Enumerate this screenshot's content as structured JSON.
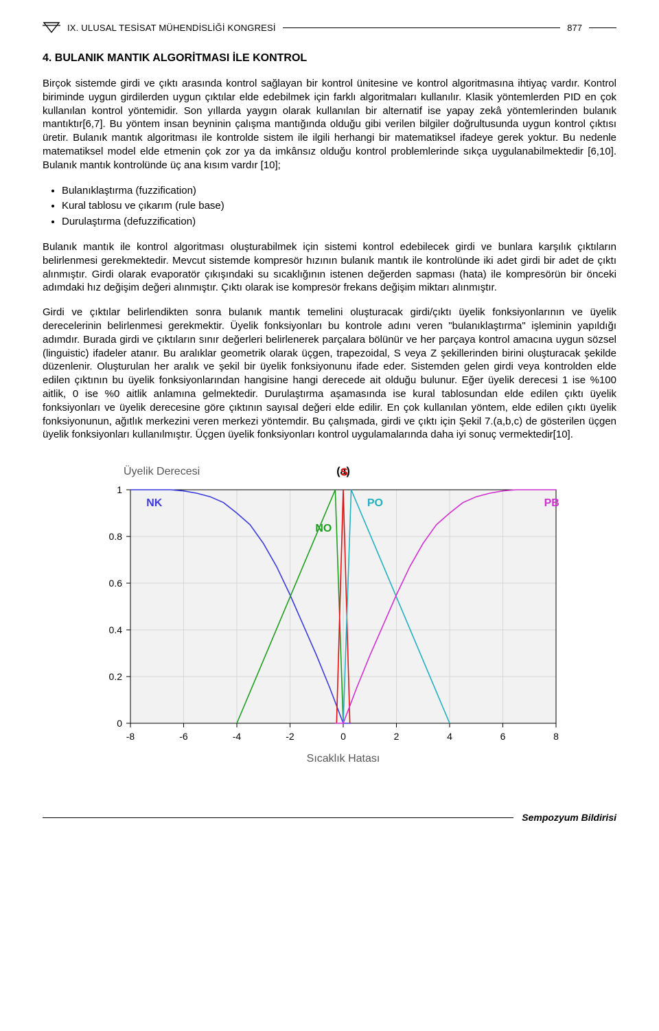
{
  "header": {
    "running_title": "IX. ULUSAL TESİSAT MÜHENDİSLİĞİ KONGRESİ",
    "page_number": "877"
  },
  "section": {
    "title": "4. BULANIK MANTIK ALGORİTMASI İLE KONTROL"
  },
  "paragraphs": {
    "p1": "Birçok sistemde girdi ve çıktı arasında kontrol sağlayan bir kontrol ünitesine ve kontrol algoritmasına ihtiyaç vardır. Kontrol biriminde uygun girdilerden uygun çıktılar elde edebilmek için farklı algoritmaları kullanılır. Klasik yöntemlerden PID en çok kullanılan kontrol yöntemidir. Son yıllarda yaygın olarak kullanılan bir alternatif ise yapay zekâ yöntemlerinden bulanık mantıktır[6,7]. Bu yöntem insan beyninin çalışma mantığında olduğu gibi verilen bilgiler doğrultusunda uygun kontrol çıktısı üretir. Bulanık mantık algoritması ile kontrolde sistem ile ilgili herhangi bir matematiksel ifadeye gerek yoktur. Bu nedenle matematiksel model elde etmenin çok zor ya da imkânsız olduğu kontrol problemlerinde sıkça uygulanabilmektedir [6,10]. Bulanık mantık kontrolünde üç ana kısım vardır [10];",
    "p2": "Bulanık mantık ile kontrol algoritması oluşturabilmek için sistemi kontrol edebilecek girdi ve bunlara karşılık çıktıların belirlenmesi gerekmektedir. Mevcut sistemde kompresör hızının bulanık mantık ile kontrolünde iki adet girdi bir adet de çıktı alınmıştır. Girdi olarak evaporatör çıkışındaki su sıcaklığının istenen değerden sapması (hata) ile kompresörün bir önceki adımdaki hız değişim değeri alınmıştır. Çıktı olarak ise kompresör frekans değişim miktarı alınmıştır.",
    "p3": "Girdi ve çıktılar belirlendikten sonra bulanık mantık temelini oluşturacak girdi/çıktı üyelik fonksiyonlarının ve üyelik derecelerinin belirlenmesi gerekmektir. Üyelik fonksiyonları bu kontrole adını veren \"bulanıklaştırma\" işleminin yapıldığı adımdır. Burada girdi ve çıktıların sınır değerleri belirlenerek parçalara bölünür ve her parçaya kontrol amacına uygun sözsel (linguistic) ifadeler atanır. Bu aralıklar geometrik olarak üçgen, trapezoidal, S veya Z şekillerinden birini oluşturacak şekilde düzenlenir. Oluşturulan her aralık ve şekil bir üyelik fonksiyonunu ifade eder. Sistemden gelen girdi veya kontrolden elde edilen çıktının bu üyelik fonksiyonlarından hangisine hangi derecede ait olduğu bulunur. Eğer üyelik derecesi 1 ise %100 aitlik, 0 ise %0 aitlik anlamına gelmektedir. Durulaştırma aşamasında ise kural tablosundan elde edilen çıktı üyelik fonksiyonları ve üyelik derecesine göre çıktının sayısal değeri elde edilir. En çok kullanılan yöntem, elde edilen çıktı üyelik fonksiyonunun, ağıtlık merkezini veren merkezi yöntemdir. Bu çalışmada, girdi ve çıktı için Şekil 7.(a,b,c) de gösterilen üçgen üyelik fonksiyonları kullanılmıştır. Üçgen üyelik fonksiyonları kontrol uygulamalarında daha iyi sonuç vermektedir[10]."
  },
  "bullets": {
    "b1": "Bulanıklaştırma (fuzzification)",
    "b2": "Kural tablosu ve çıkarım (rule base)",
    "b3": "Durulaştırma (defuzzification)"
  },
  "footer": {
    "text": "Sempozyum Bildirisi"
  },
  "chart": {
    "type": "membership-functions",
    "subplot_label": "(a)",
    "y_axis_title": "Üyelik Derecesi",
    "x_axis_title": "Sıcaklık Hatası",
    "xlim": [
      -8,
      8
    ],
    "ylim": [
      0,
      1
    ],
    "xticks": [
      -8,
      -6,
      -4,
      -2,
      0,
      2,
      4,
      6,
      8
    ],
    "yticks": [
      0,
      0.2,
      0.4,
      0.6,
      0.8,
      1
    ],
    "plot_bg": "#f2f2f2",
    "page_bg": "#ffffff",
    "grid_color": "#cccccc",
    "axis_color": "#000000",
    "tick_font_size": 14,
    "title_font_size": 16,
    "title_color": "#555555",
    "subplot_label_color": "#000000",
    "line_width": 1.6,
    "curves": {
      "NK": {
        "label": "NK",
        "color": "#3a3adf",
        "label_xy": [
          -7.4,
          0.93
        ],
        "type": "z-shape",
        "points": [
          [
            -8,
            1
          ],
          [
            -7,
            1
          ],
          [
            -6.5,
            1
          ],
          [
            -6,
            0.995
          ],
          [
            -5.5,
            0.985
          ],
          [
            -5,
            0.97
          ],
          [
            -4.5,
            0.945
          ],
          [
            -4,
            0.9
          ],
          [
            -3.5,
            0.85
          ],
          [
            -3,
            0.77
          ],
          [
            -2.5,
            0.67
          ],
          [
            -2,
            0.55
          ],
          [
            -1.5,
            0.42
          ],
          [
            -1,
            0.29
          ],
          [
            -0.5,
            0.15
          ],
          [
            -0.2,
            0.06
          ],
          [
            0,
            0
          ],
          [
            0.3,
            0
          ]
        ]
      },
      "NO": {
        "label": "NO",
        "color": "#1e9e1e",
        "label_xy": [
          -1.05,
          0.82
        ],
        "type": "triangle",
        "points": [
          [
            -4,
            0
          ],
          [
            -0.3,
            1
          ],
          [
            0,
            0
          ]
        ]
      },
      "S": {
        "label": "S",
        "color": "#e01010",
        "label_xy": [
          -0.1,
          1.06
        ],
        "type": "triangle",
        "points": [
          [
            -0.25,
            0
          ],
          [
            0,
            1
          ],
          [
            0.25,
            0
          ]
        ]
      },
      "PO": {
        "label": "PO",
        "color": "#20b0c0",
        "label_xy": [
          0.9,
          0.93
        ],
        "type": "triangle",
        "points": [
          [
            0,
            0
          ],
          [
            0.3,
            1
          ],
          [
            4,
            0
          ]
        ]
      },
      "PB": {
        "label": "PB",
        "color": "#d030d0",
        "label_xy": [
          7.55,
          0.93
        ],
        "type": "s-shape",
        "points": [
          [
            -0.3,
            0
          ],
          [
            0,
            0
          ],
          [
            0.5,
            0.15
          ],
          [
            1,
            0.29
          ],
          [
            1.5,
            0.42
          ],
          [
            2,
            0.55
          ],
          [
            2.5,
            0.67
          ],
          [
            3,
            0.77
          ],
          [
            3.5,
            0.85
          ],
          [
            4,
            0.9
          ],
          [
            4.5,
            0.945
          ],
          [
            5,
            0.97
          ],
          [
            5.5,
            0.985
          ],
          [
            6,
            0.995
          ],
          [
            6.5,
            1
          ],
          [
            7,
            1
          ],
          [
            8,
            1
          ]
        ]
      }
    }
  }
}
